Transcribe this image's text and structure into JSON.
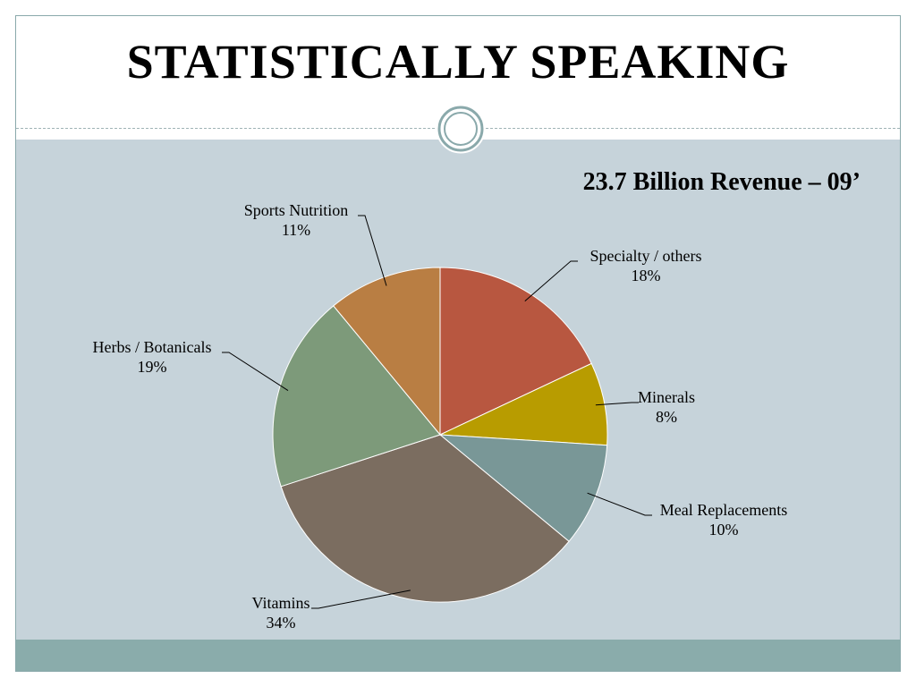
{
  "slide": {
    "title": "STATISTICALLY SPEAKING"
  },
  "chart_data": {
    "type": "pie",
    "title": "23.7 Billion Revenue – 09’",
    "slices": [
      {
        "name": "Specialty / others",
        "value": 18,
        "label": "18%",
        "color": "#b85740"
      },
      {
        "name": "Minerals",
        "value": 8,
        "label": "8%",
        "color": "#b89c00"
      },
      {
        "name": "Meal Replacements",
        "value": 10,
        "label": "10%",
        "color": "#799797"
      },
      {
        "name": "Vitamins",
        "value": 34,
        "label": "34%",
        "color": "#7b6d60"
      },
      {
        "name": "Herbs / Botanicals",
        "value": 19,
        "label": "19%",
        "color": "#7d9a7a"
      },
      {
        "name": "Sports Nutrition",
        "value": 11,
        "label": "11%",
        "color": "#b97e43"
      }
    ]
  },
  "colors": {
    "content_background": "#c6d3da",
    "footer_band": "#8aacab",
    "border": "#8aa9ab"
  }
}
